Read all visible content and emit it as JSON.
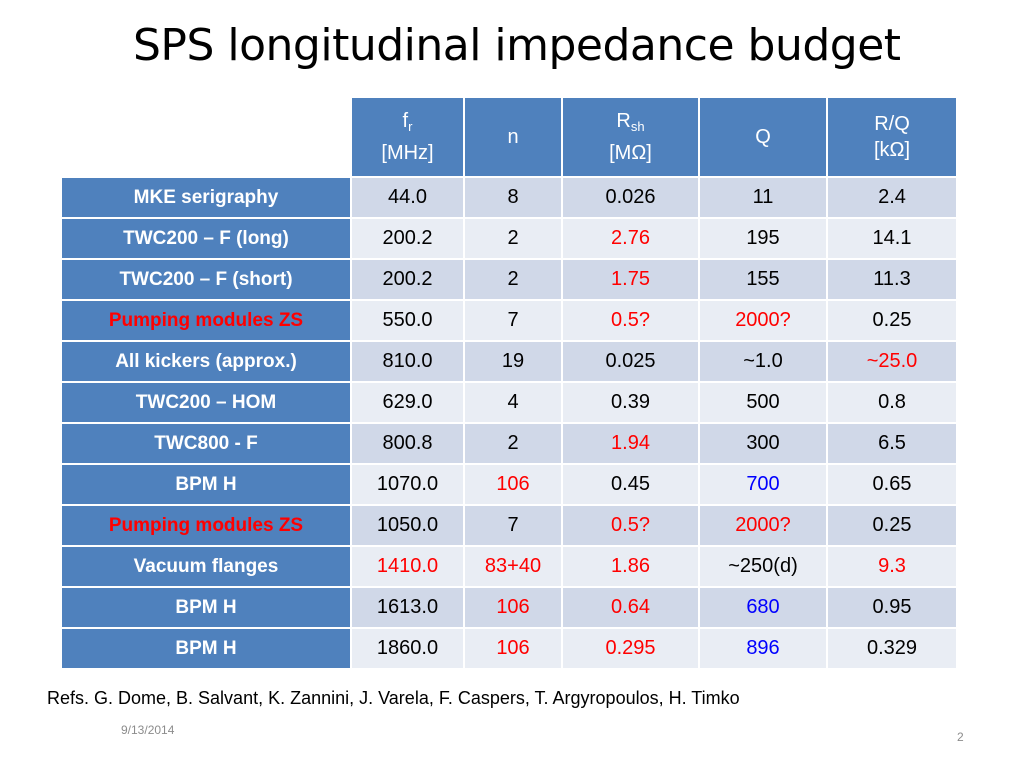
{
  "slide": {
    "title": "SPS longitudinal impedance budget",
    "refs": "Refs. G. Dome,  B. Salvant, K. Zannini, J. Varela, F. Caspers, T. Argyropoulos, H. Timko",
    "date": "9/13/2014",
    "page_number": "2"
  },
  "table": {
    "headers": [
      {
        "main": "f",
        "sub": "r",
        "unit": "[MHz]"
      },
      {
        "main": "n",
        "sub": "",
        "unit": ""
      },
      {
        "main": "R",
        "sub": "sh",
        "unit": "[MΩ]"
      },
      {
        "main": "Q",
        "sub": "",
        "unit": ""
      },
      {
        "main": "R/Q",
        "sub": "",
        "unit": "[kΩ]"
      }
    ],
    "rows": [
      {
        "label": "MKE serigraphy",
        "label_color": "white",
        "cells": [
          {
            "v": "44.0",
            "c": ""
          },
          {
            "v": "8",
            "c": ""
          },
          {
            "v": "0.026",
            "c": ""
          },
          {
            "v": "11",
            "c": ""
          },
          {
            "v": "2.4",
            "c": ""
          }
        ]
      },
      {
        "label": "TWC200 – F (long)",
        "label_color": "white",
        "cells": [
          {
            "v": "200.2",
            "c": ""
          },
          {
            "v": "2",
            "c": ""
          },
          {
            "v": "2.76",
            "c": "red"
          },
          {
            "v": "195",
            "c": ""
          },
          {
            "v": "14.1",
            "c": ""
          }
        ]
      },
      {
        "label": "TWC200 – F (short)",
        "label_color": "white",
        "cells": [
          {
            "v": "200.2",
            "c": ""
          },
          {
            "v": "2",
            "c": ""
          },
          {
            "v": "1.75",
            "c": "red"
          },
          {
            "v": "155",
            "c": ""
          },
          {
            "v": "11.3",
            "c": ""
          }
        ]
      },
      {
        "label": "Pumping modules ZS",
        "label_color": "red",
        "cells": [
          {
            "v": "550.0",
            "c": ""
          },
          {
            "v": "7",
            "c": ""
          },
          {
            "v": "0.5?",
            "c": "red"
          },
          {
            "v": "2000?",
            "c": "red"
          },
          {
            "v": "0.25",
            "c": ""
          }
        ]
      },
      {
        "label": "All kickers (approx.)",
        "label_color": "white",
        "cells": [
          {
            "v": "810.0",
            "c": ""
          },
          {
            "v": "19",
            "c": ""
          },
          {
            "v": "0.025",
            "c": ""
          },
          {
            "v": "~1.0",
            "c": ""
          },
          {
            "v": "~25.0",
            "c": "red"
          }
        ]
      },
      {
        "label": "TWC200 – HOM",
        "label_color": "white",
        "cells": [
          {
            "v": "629.0",
            "c": ""
          },
          {
            "v": "4",
            "c": ""
          },
          {
            "v": "0.39",
            "c": ""
          },
          {
            "v": "500",
            "c": ""
          },
          {
            "v": "0.8",
            "c": ""
          }
        ]
      },
      {
        "label": "TWC800 - F",
        "label_color": "white",
        "cells": [
          {
            "v": "800.8",
            "c": ""
          },
          {
            "v": "2",
            "c": ""
          },
          {
            "v": "1.94",
            "c": "red"
          },
          {
            "v": "300",
            "c": ""
          },
          {
            "v": "6.5",
            "c": ""
          }
        ]
      },
      {
        "label": "BPM H",
        "label_color": "white",
        "cells": [
          {
            "v": "1070.0",
            "c": ""
          },
          {
            "v": "106",
            "c": "red"
          },
          {
            "v": "0.45",
            "c": ""
          },
          {
            "v": "700",
            "c": "blue"
          },
          {
            "v": "0.65",
            "c": ""
          }
        ]
      },
      {
        "label": "Pumping modules ZS",
        "label_color": "red",
        "cells": [
          {
            "v": "1050.0",
            "c": ""
          },
          {
            "v": "7",
            "c": ""
          },
          {
            "v": "0.5?",
            "c": "red"
          },
          {
            "v": "2000?",
            "c": "red"
          },
          {
            "v": "0.25",
            "c": ""
          }
        ]
      },
      {
        "label": "Vacuum flanges",
        "label_color": "white",
        "cells": [
          {
            "v": "1410.0",
            "c": "red"
          },
          {
            "v": "83+40",
            "c": "red"
          },
          {
            "v": "1.86",
            "c": "red"
          },
          {
            "v": "~250(d)",
            "c": ""
          },
          {
            "v": "9.3",
            "c": "red"
          }
        ]
      },
      {
        "label": "BPM H",
        "label_color": "white",
        "cells": [
          {
            "v": "1613.0",
            "c": ""
          },
          {
            "v": "106",
            "c": "red"
          },
          {
            "v": "0.64",
            "c": "red"
          },
          {
            "v": "680",
            "c": "blue"
          },
          {
            "v": "0.95",
            "c": ""
          }
        ]
      },
      {
        "label": "BPM H",
        "label_color": "white",
        "cells": [
          {
            "v": "1860.0",
            "c": ""
          },
          {
            "v": "106",
            "c": "red"
          },
          {
            "v": "0.295",
            "c": "red"
          },
          {
            "v": "896",
            "c": "blue"
          },
          {
            "v": "0.329",
            "c": ""
          }
        ]
      }
    ]
  },
  "colors": {
    "header_bg": "#4f81bd",
    "row_band_a": "#d0d8e8",
    "row_band_b": "#e9edf4",
    "highlight_red": "#ff0000",
    "highlight_blue": "#0000ff"
  }
}
